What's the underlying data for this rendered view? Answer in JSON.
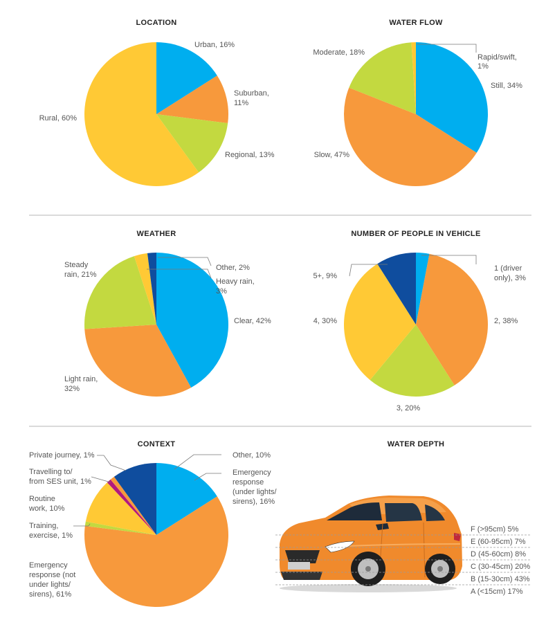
{
  "colors": {
    "blue": "#00AEEF",
    "orange": "#F7993C",
    "lime": "#C3D940",
    "yellow": "#FFC935",
    "navy": "#0F4D9E",
    "magenta": "#B3197E",
    "car_body": "#F08A2C"
  },
  "chart_data": [
    {
      "type": "pie",
      "title": "LOCATION",
      "slices": [
        {
          "label": "Urban, 16%",
          "value": 16,
          "color": "#00AEEF"
        },
        {
          "label": "Suburban, 11%",
          "value": 11,
          "color": "#F7993C"
        },
        {
          "label": "Regional, 13%",
          "value": 13,
          "color": "#C3D940"
        },
        {
          "label": "Rural, 60%",
          "value": 60,
          "color": "#FFC935"
        }
      ]
    },
    {
      "type": "pie",
      "title": "WATER FLOW",
      "slices": [
        {
          "label": "Still, 34%",
          "value": 34,
          "color": "#00AEEF"
        },
        {
          "label": "Slow, 47%",
          "value": 47,
          "color": "#F7993C"
        },
        {
          "label": "Moderate, 18%",
          "value": 18,
          "color": "#C3D940"
        },
        {
          "label": "Rapid/swift, 1%",
          "value": 1,
          "color": "#FFC935"
        }
      ]
    },
    {
      "type": "pie",
      "title": "WEATHER",
      "slices": [
        {
          "label": "Clear, 42%",
          "value": 42,
          "color": "#00AEEF"
        },
        {
          "label": "Light rain, 32%",
          "value": 32,
          "color": "#F7993C"
        },
        {
          "label": "Steady rain, 21%",
          "value": 21,
          "color": "#C3D940"
        },
        {
          "label": "Heavy rain, 3%",
          "value": 3,
          "color": "#FFC935"
        },
        {
          "label": "Other, 2%",
          "value": 2,
          "color": "#0F4D9E"
        }
      ]
    },
    {
      "type": "pie",
      "title": "NUMBER OF PEOPLE IN VEHICLE",
      "slices": [
        {
          "label": "1 (driver only), 3%",
          "value": 3,
          "color": "#00AEEF"
        },
        {
          "label": "2, 38%",
          "value": 38,
          "color": "#F7993C"
        },
        {
          "label": "3, 20%",
          "value": 20,
          "color": "#C3D940"
        },
        {
          "label": "4, 30%",
          "value": 30,
          "color": "#FFC935"
        },
        {
          "label": "5+, 9%",
          "value": 9,
          "color": "#0F4D9E"
        }
      ]
    },
    {
      "type": "pie",
      "title": "CONTEXT",
      "slices": [
        {
          "label": "Emergency response (under lights/ sirens), 16%",
          "value": 16,
          "color": "#00AEEF"
        },
        {
          "label": "Emergency response (not under lights/ sirens), 61%",
          "value": 61,
          "color": "#F7993C"
        },
        {
          "label": "Training, exercise, 1%",
          "value": 1,
          "color": "#C3D940"
        },
        {
          "label": "Routine work, 10%",
          "value": 10,
          "color": "#FFC935"
        },
        {
          "label": "Travelling to/ from SES unit, 1%",
          "value": 1,
          "color": "#B3197E"
        },
        {
          "label": "Private journey, 1%",
          "value": 1,
          "color": "#F7993C"
        },
        {
          "label": "Other, 10%",
          "value": 10,
          "color": "#0F4D9E"
        }
      ]
    },
    {
      "type": "table",
      "title": "WATER DEPTH",
      "rows": [
        {
          "label": "F  (>95cm) 5%",
          "value": 5
        },
        {
          "label": "E  (60-95cm) 7%",
          "value": 7
        },
        {
          "label": "D  (45-60cm) 8%",
          "value": 8
        },
        {
          "label": "C  (30-45cm) 20%",
          "value": 20
        },
        {
          "label": "B  (15-30cm) 43%",
          "value": 43
        },
        {
          "label": "A  (<15cm) 17%",
          "value": 17
        }
      ]
    }
  ]
}
